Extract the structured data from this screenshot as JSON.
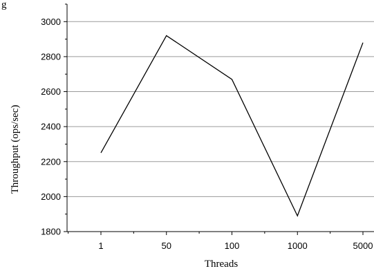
{
  "header_fragment": "g",
  "chart_data": {
    "type": "line",
    "title": "",
    "xlabel": "Threads",
    "ylabel": "Throughput (ops/sec)",
    "categories": [
      "1",
      "50",
      "100",
      "1000",
      "5000"
    ],
    "series": [
      {
        "values": [
          2250,
          2920,
          2670,
          1890,
          2880
        ]
      }
    ],
    "ylim": [
      1800,
      3100
    ],
    "yticks": [
      1800,
      2000,
      2200,
      2400,
      2600,
      2800,
      3000
    ],
    "ytick_labels": [
      "1800",
      "2000",
      "2200",
      "2400",
      "2600",
      "2800",
      "3000"
    ],
    "grid": true,
    "legend": "none",
    "colors": {
      "line": "#000000",
      "grid": "#9a9a9a",
      "axis": "#000000"
    }
  }
}
